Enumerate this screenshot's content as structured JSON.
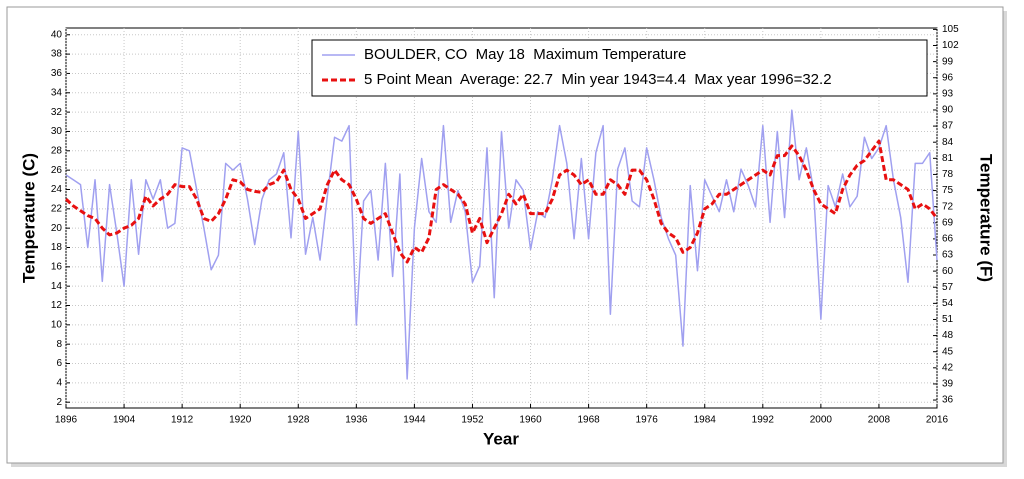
{
  "chart_data": {
    "type": "line",
    "xlabel": "Year",
    "ylabel": "Temperature (C)",
    "y2label": "Temperature (F)",
    "x": [
      1896,
      1897,
      1898,
      1899,
      1900,
      1901,
      1902,
      1903,
      1904,
      1905,
      1906,
      1907,
      1908,
      1909,
      1910,
      1911,
      1912,
      1913,
      1914,
      1915,
      1916,
      1917,
      1918,
      1919,
      1920,
      1921,
      1922,
      1923,
      1924,
      1925,
      1926,
      1927,
      1928,
      1929,
      1930,
      1931,
      1932,
      1933,
      1934,
      1935,
      1936,
      1937,
      1938,
      1939,
      1940,
      1941,
      1942,
      1943,
      1944,
      1945,
      1946,
      1947,
      1948,
      1949,
      1950,
      1951,
      1952,
      1953,
      1954,
      1955,
      1956,
      1957,
      1958,
      1959,
      1960,
      1961,
      1962,
      1963,
      1964,
      1965,
      1966,
      1967,
      1968,
      1969,
      1970,
      1971,
      1972,
      1973,
      1974,
      1975,
      1976,
      1977,
      1978,
      1979,
      1980,
      1981,
      1982,
      1983,
      1984,
      1985,
      1986,
      1987,
      1988,
      1989,
      1990,
      1991,
      1992,
      1993,
      1994,
      1995,
      1996,
      1997,
      1998,
      1999,
      2000,
      2001,
      2002,
      2003,
      2004,
      2005,
      2006,
      2007,
      2008,
      2009,
      2010,
      2011,
      2012,
      2013,
      2014,
      2015,
      2016
    ],
    "series": [
      {
        "name": "BOULDER, CO  May 18  Maximum Temperature",
        "color": "#a0a0f0",
        "style": "solid",
        "values": [
          25.5,
          25,
          24.5,
          18,
          25,
          14.5,
          24.5,
          19.5,
          14,
          25,
          17.3,
          25,
          23,
          25,
          20,
          20.5,
          28.3,
          28,
          24,
          20,
          15.7,
          17.2,
          26.7,
          26,
          26.7,
          23,
          18.3,
          23,
          25,
          25.6,
          27.8,
          19,
          30,
          17.3,
          21.1,
          16.7,
          23.3,
          29.4,
          29,
          30.6,
          10,
          22.8,
          23.9,
          16.7,
          26.7,
          15,
          25.6,
          4.4,
          20,
          27.2,
          21.7,
          20.6,
          30.6,
          20.6,
          23.9,
          21.7,
          14.4,
          16.1,
          28.3,
          12.8,
          30,
          20,
          25,
          23.9,
          17.8,
          21.7,
          21.1,
          25,
          30.6,
          26.7,
          18.9,
          27.2,
          18.9,
          27.8,
          30.6,
          11.1,
          26.1,
          28.3,
          22.8,
          22.2,
          28.3,
          25,
          21.1,
          18.9,
          17.2,
          7.8,
          24.4,
          15.6,
          25,
          23.3,
          21.7,
          25,
          21.7,
          26.1,
          24.4,
          22.2,
          30.6,
          20.6,
          30,
          21.1,
          32.2,
          25,
          28.3,
          23.9,
          10.6,
          24.4,
          22.2,
          25.6,
          22.2,
          23.3,
          29.4,
          27.2,
          28.3,
          30.6,
          25,
          21.1,
          14.4,
          26.7,
          26.7,
          27.8,
          16.7
        ]
      },
      {
        "name": "5 Point Mean  Average: 22.7  Min year 1943=4.4  Max year 1996=32.2",
        "color": "#e81010",
        "style": "dashed",
        "values": [
          23,
          22.3,
          21.8,
          21.3,
          21,
          20,
          19.3,
          19.5,
          20,
          20.3,
          21,
          23.3,
          22.3,
          23,
          23.5,
          24.5,
          24.3,
          24.3,
          23,
          21,
          20.7,
          21.5,
          23,
          25,
          24.8,
          24,
          23.8,
          23.7,
          24.5,
          24.8,
          26,
          24,
          23,
          21,
          21.5,
          22,
          24.5,
          26,
          25,
          24.5,
          23,
          21,
          20.5,
          21,
          21.5,
          19.5,
          17.5,
          16.5,
          18,
          17.5,
          19,
          24,
          24.5,
          24,
          23.5,
          22.5,
          19.5,
          21,
          18.5,
          20,
          21.5,
          23.5,
          22.5,
          23.5,
          21.5,
          21.5,
          21.5,
          23,
          25.5,
          26,
          25.5,
          24.5,
          25,
          23.5,
          23.5,
          25,
          24.5,
          23.5,
          26,
          26,
          25,
          23,
          20.5,
          19.5,
          19,
          17.5,
          18,
          19.5,
          22,
          22.5,
          23.5,
          23.5,
          24,
          24.5,
          25,
          25.5,
          26,
          25.5,
          27.5,
          27.5,
          28.5,
          27.5,
          26,
          24,
          22.5,
          22,
          21.5,
          24,
          25.5,
          26.5,
          27,
          28,
          29,
          25,
          25,
          24.5,
          24,
          22,
          22.5,
          22,
          21
        ]
      }
    ],
    "xlim": [
      1896,
      2016
    ],
    "xticks": [
      1896,
      1904,
      1912,
      1920,
      1928,
      1936,
      1944,
      1952,
      1960,
      1968,
      1976,
      1984,
      1992,
      2000,
      2008,
      2016
    ],
    "ylim": [
      1.4,
      40.7
    ],
    "yticks": [
      2,
      4,
      6,
      8,
      10,
      12,
      14,
      16,
      18,
      20,
      22,
      24,
      26,
      28,
      30,
      32,
      34,
      36,
      38,
      40
    ],
    "y2lim": [
      34.52,
      105.26
    ],
    "y2ticks": [
      36,
      39,
      42,
      45,
      48,
      51,
      54,
      57,
      60,
      63,
      66,
      69,
      72,
      75,
      78,
      81,
      84,
      87,
      90,
      93,
      96,
      99,
      102,
      105
    ],
    "grid": true,
    "legend": "top-right"
  }
}
